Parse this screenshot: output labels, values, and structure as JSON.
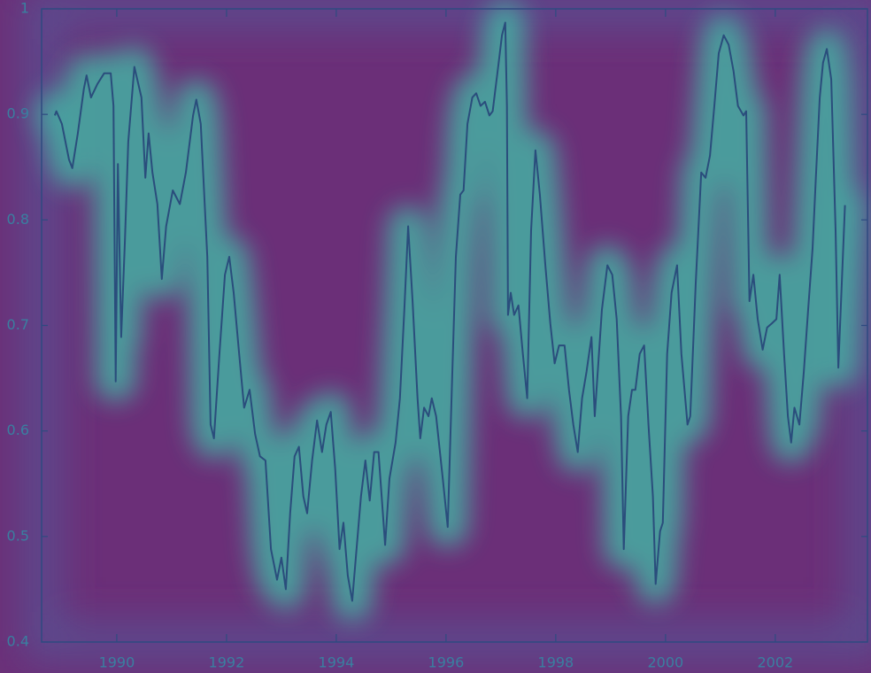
{
  "chart_data": {
    "type": "line",
    "xlim": [
      1988.63,
      2003.68
    ],
    "xticks": [
      1990,
      1992,
      1994,
      1996,
      1998,
      2000,
      2002
    ],
    "ylim": [
      0.4,
      1
    ],
    "yticks": [
      0.4,
      0.5,
      0.6,
      0.7,
      0.8,
      0.9,
      1
    ],
    "color": "#2a4d7c",
    "x": [
      1988.87,
      1988.9,
      1989.0,
      1989.13,
      1989.19,
      1989.29,
      1989.4,
      1989.45,
      1989.53,
      1989.65,
      1989.77,
      1989.89,
      1989.94,
      1989.98,
      1990.02,
      1990.08,
      1990.15,
      1990.21,
      1990.32,
      1990.45,
      1990.52,
      1990.58,
      1990.65,
      1990.74,
      1990.82,
      1990.9,
      1991.02,
      1991.15,
      1991.26,
      1991.39,
      1991.45,
      1991.53,
      1991.65,
      1991.71,
      1991.77,
      1991.87,
      1991.97,
      1992.05,
      1992.13,
      1992.23,
      1992.32,
      1992.42,
      1992.52,
      1992.61,
      1992.71,
      1992.81,
      1992.92,
      1993.0,
      1993.08,
      1993.16,
      1993.24,
      1993.32,
      1993.4,
      1993.47,
      1993.56,
      1993.65,
      1993.74,
      1993.82,
      1993.9,
      1993.98,
      1994.06,
      1994.13,
      1994.21,
      1994.29,
      1994.37,
      1994.45,
      1994.53,
      1994.61,
      1994.69,
      1994.77,
      1994.89,
      1994.97,
      1995.08,
      1995.16,
      1995.24,
      1995.31,
      1995.39,
      1995.48,
      1995.53,
      1995.6,
      1995.68,
      1995.74,
      1995.82,
      1995.94,
      1996.03,
      1996.11,
      1996.18,
      1996.26,
      1996.32,
      1996.39,
      1996.48,
      1996.55,
      1996.63,
      1996.71,
      1996.79,
      1996.85,
      1996.94,
      1997.02,
      1997.08,
      1997.11,
      1997.13,
      1997.18,
      1997.24,
      1997.32,
      1997.4,
      1997.48,
      1997.55,
      1997.63,
      1997.71,
      1997.81,
      1997.9,
      1997.98,
      1998.06,
      1998.16,
      1998.24,
      1998.32,
      1998.4,
      1998.48,
      1998.56,
      1998.65,
      1998.71,
      1998.77,
      1998.84,
      1998.94,
      1999.03,
      1999.11,
      1999.19,
      1999.24,
      1999.32,
      1999.39,
      1999.45,
      1999.53,
      1999.61,
      1999.69,
      1999.77,
      1999.82,
      1999.9,
      1999.95,
      2000.03,
      2000.11,
      2000.21,
      2000.29,
      2000.4,
      2000.45,
      2000.55,
      2000.65,
      2000.73,
      2000.81,
      2000.89,
      2000.97,
      2001.06,
      2001.15,
      2001.24,
      2001.32,
      2001.42,
      2001.47,
      2001.53,
      2001.6,
      2001.68,
      2001.77,
      2001.85,
      2001.94,
      2002.02,
      2002.08,
      2002.16,
      2002.23,
      2002.29,
      2002.35,
      2002.44,
      2002.52,
      2002.6,
      2002.68,
      2002.74,
      2002.81,
      2002.87,
      2002.94,
      2003.02,
      2003.1,
      2003.15,
      2003.27
    ],
    "values": [
      0.899,
      0.903,
      0.891,
      0.857,
      0.849,
      0.882,
      0.924,
      0.937,
      0.916,
      0.929,
      0.939,
      0.939,
      0.908,
      0.647,
      0.853,
      0.689,
      0.782,
      0.874,
      0.945,
      0.916,
      0.84,
      0.882,
      0.845,
      0.815,
      0.744,
      0.794,
      0.828,
      0.815,
      0.845,
      0.899,
      0.914,
      0.891,
      0.765,
      0.606,
      0.593,
      0.673,
      0.748,
      0.765,
      0.731,
      0.673,
      0.622,
      0.639,
      0.597,
      0.576,
      0.572,
      0.488,
      0.459,
      0.48,
      0.45,
      0.522,
      0.576,
      0.585,
      0.538,
      0.522,
      0.572,
      0.61,
      0.58,
      0.606,
      0.618,
      0.564,
      0.488,
      0.513,
      0.463,
      0.439,
      0.488,
      0.538,
      0.572,
      0.534,
      0.58,
      0.58,
      0.492,
      0.555,
      0.589,
      0.631,
      0.715,
      0.794,
      0.723,
      0.631,
      0.593,
      0.622,
      0.614,
      0.631,
      0.614,
      0.555,
      0.509,
      0.647,
      0.765,
      0.824,
      0.828,
      0.891,
      0.916,
      0.92,
      0.908,
      0.912,
      0.899,
      0.903,
      0.941,
      0.975,
      0.987,
      0.908,
      0.71,
      0.731,
      0.71,
      0.719,
      0.673,
      0.631,
      0.79,
      0.866,
      0.824,
      0.757,
      0.702,
      0.664,
      0.681,
      0.681,
      0.639,
      0.606,
      0.58,
      0.631,
      0.656,
      0.689,
      0.614,
      0.66,
      0.715,
      0.757,
      0.748,
      0.706,
      0.614,
      0.488,
      0.614,
      0.639,
      0.639,
      0.673,
      0.681,
      0.606,
      0.538,
      0.455,
      0.505,
      0.513,
      0.673,
      0.731,
      0.757,
      0.673,
      0.606,
      0.614,
      0.74,
      0.845,
      0.84,
      0.861,
      0.908,
      0.958,
      0.975,
      0.966,
      0.941,
      0.908,
      0.899,
      0.903,
      0.723,
      0.748,
      0.706,
      0.677,
      0.698,
      0.702,
      0.706,
      0.748,
      0.673,
      0.614,
      0.589,
      0.622,
      0.606,
      0.656,
      0.715,
      0.773,
      0.84,
      0.916,
      0.949,
      0.962,
      0.933,
      0.79,
      0.66,
      0.814
    ]
  }
}
